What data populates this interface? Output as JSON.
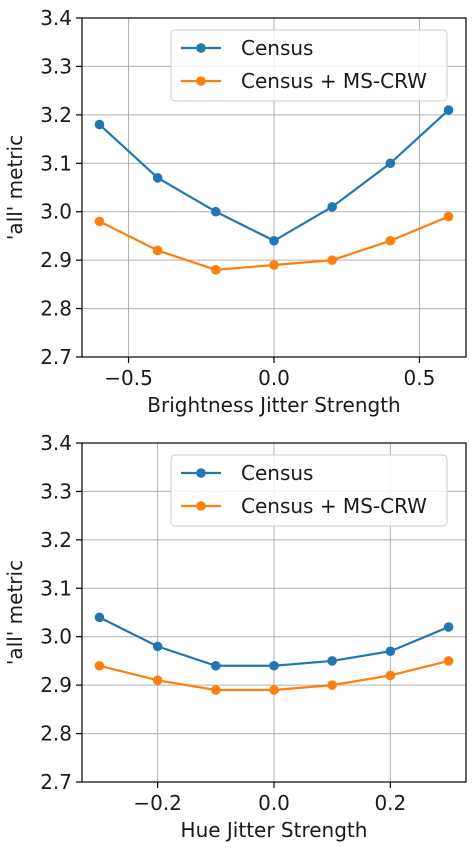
{
  "chart_data": [
    {
      "type": "line",
      "title": "",
      "xlabel": "Brightness Jitter Strength",
      "ylabel": "'all' metric",
      "xlim": [
        -0.66,
        0.66
      ],
      "ylim": [
        2.7,
        3.4
      ],
      "xticks": [
        -0.5,
        0.0,
        0.5
      ],
      "xtick_labels": [
        "−0.5",
        "0.0",
        "0.5"
      ],
      "yticks": [
        2.7,
        2.8,
        2.9,
        3.0,
        3.1,
        3.2,
        3.3,
        3.4
      ],
      "ytick_labels": [
        "2.7",
        "2.8",
        "2.9",
        "3.0",
        "3.1",
        "3.2",
        "3.3",
        "3.4"
      ],
      "grid": true,
      "legend_position": "top-right",
      "x": [
        -0.6,
        -0.4,
        -0.2,
        0.0,
        0.2,
        0.4,
        0.6
      ],
      "series": [
        {
          "name": "Census",
          "color": "#1f77b4",
          "values": [
            3.18,
            3.07,
            3.0,
            2.94,
            3.01,
            3.1,
            3.21
          ]
        },
        {
          "name": "Census + MS-CRW",
          "color": "#ff7f0e",
          "values": [
            2.98,
            2.92,
            2.88,
            2.89,
            2.9,
            2.94,
            2.99
          ]
        }
      ]
    },
    {
      "type": "line",
      "title": "",
      "xlabel": "Hue Jitter Strength",
      "ylabel": "'all' metric",
      "xlim": [
        -0.33,
        0.33
      ],
      "ylim": [
        2.7,
        3.4
      ],
      "xticks": [
        -0.2,
        0.0,
        0.2
      ],
      "xtick_labels": [
        "−0.2",
        "0.0",
        "0.2"
      ],
      "yticks": [
        2.7,
        2.8,
        2.9,
        3.0,
        3.1,
        3.2,
        3.3,
        3.4
      ],
      "ytick_labels": [
        "2.7",
        "2.8",
        "2.9",
        "3.0",
        "3.1",
        "3.2",
        "3.3",
        "3.4"
      ],
      "grid": true,
      "legend_position": "top-right",
      "x": [
        -0.3,
        -0.2,
        -0.1,
        0.0,
        0.1,
        0.2,
        0.3
      ],
      "series": [
        {
          "name": "Census",
          "color": "#1f77b4",
          "values": [
            3.04,
            2.98,
            2.94,
            2.94,
            2.95,
            2.97,
            3.02
          ]
        },
        {
          "name": "Census + MS-CRW",
          "color": "#ff7f0e",
          "values": [
            2.94,
            2.91,
            2.89,
            2.89,
            2.9,
            2.92,
            2.95
          ]
        }
      ]
    }
  ]
}
